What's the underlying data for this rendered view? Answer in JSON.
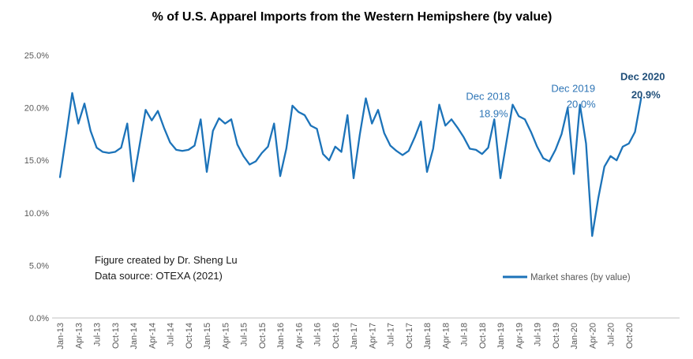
{
  "title": "% of U.S. Apparel Imports from the Western Hemipshere (by value)",
  "footer": {
    "line1": "Figure created by Dr. Sheng Lu",
    "line2": "Data source: OTEXA (2021)"
  },
  "legend": {
    "label": "Market shares (by value)"
  },
  "colors": {
    "line": "#1C73B9",
    "annotation": "#2E75B6",
    "annotation_bold": "#1F4E79",
    "axis_text": "#595959",
    "axis_line": "#C0C0C0",
    "title_text": "#000000"
  },
  "chart_data": {
    "type": "line",
    "title": "% of U.S. Apparel Imports from the Western Hemipshere (by value)",
    "series_name": "Market shares (by value)",
    "x_unit": "month",
    "x_start": "Jan-13",
    "x_end": "Dec-20",
    "x_tick_labels": [
      "Jan-13",
      "Apr-13",
      "Jul-13",
      "Oct-13",
      "Jan-14",
      "Apr-14",
      "Jul-14",
      "Oct-14",
      "Jan-15",
      "Apr-15",
      "Jul-15",
      "Oct-15",
      "Jan-16",
      "Apr-16",
      "Jul-16",
      "Oct-16",
      "Jan-17",
      "Apr-17",
      "Jul-17",
      "Oct-17",
      "Jan-18",
      "Apr-18",
      "Jul-18",
      "Oct-18",
      "Jan-19",
      "Apr-19",
      "Jul-19",
      "Oct-19",
      "Jan-20",
      "Apr-20",
      "Jul-20",
      "Oct-20"
    ],
    "y_ticks": [
      "0.0%",
      "5.0%",
      "10.0%",
      "15.0%",
      "20.0%",
      "25.0%"
    ],
    "ylim": [
      0,
      25
    ],
    "grid": "off",
    "legend_position": "bottom-right",
    "values": [
      13.4,
      17.3,
      21.4,
      18.5,
      20.4,
      17.8,
      16.2,
      15.8,
      15.7,
      15.8,
      16.2,
      18.5,
      13.0,
      16.4,
      19.8,
      18.8,
      19.7,
      18.1,
      16.7,
      16.0,
      15.9,
      16.0,
      16.4,
      18.9,
      13.9,
      17.8,
      19.0,
      18.5,
      18.9,
      16.5,
      15.4,
      14.6,
      14.9,
      15.7,
      16.3,
      18.5,
      13.5,
      16.1,
      20.2,
      19.6,
      19.3,
      18.3,
      18.0,
      15.6,
      15.0,
      16.3,
      15.8,
      19.3,
      13.3,
      17.4,
      20.9,
      18.5,
      19.8,
      17.6,
      16.4,
      15.9,
      15.5,
      15.9,
      17.2,
      18.7,
      13.9,
      16.1,
      20.3,
      18.3,
      18.9,
      18.1,
      17.2,
      16.1,
      16.0,
      15.6,
      16.2,
      18.9,
      13.3,
      16.8,
      20.3,
      19.2,
      18.9,
      17.7,
      16.3,
      15.2,
      14.9,
      16.0,
      17.5,
      20.0,
      13.7,
      20.3,
      16.6,
      7.8,
      11.4,
      14.4,
      15.4,
      15.0,
      16.3,
      16.6,
      17.7,
      20.9
    ],
    "annotations": [
      {
        "label": "Dec 2018",
        "value_label": "18.9%",
        "month_index": 71,
        "value": 18.9,
        "bold": false
      },
      {
        "label": "Dec 2019",
        "value_label": "20.0%",
        "month_index": 83,
        "value": 20.0,
        "bold": false
      },
      {
        "label": "Dec 2020",
        "value_label": "20.9%",
        "month_index": 95,
        "value": 20.9,
        "bold": true
      }
    ]
  }
}
